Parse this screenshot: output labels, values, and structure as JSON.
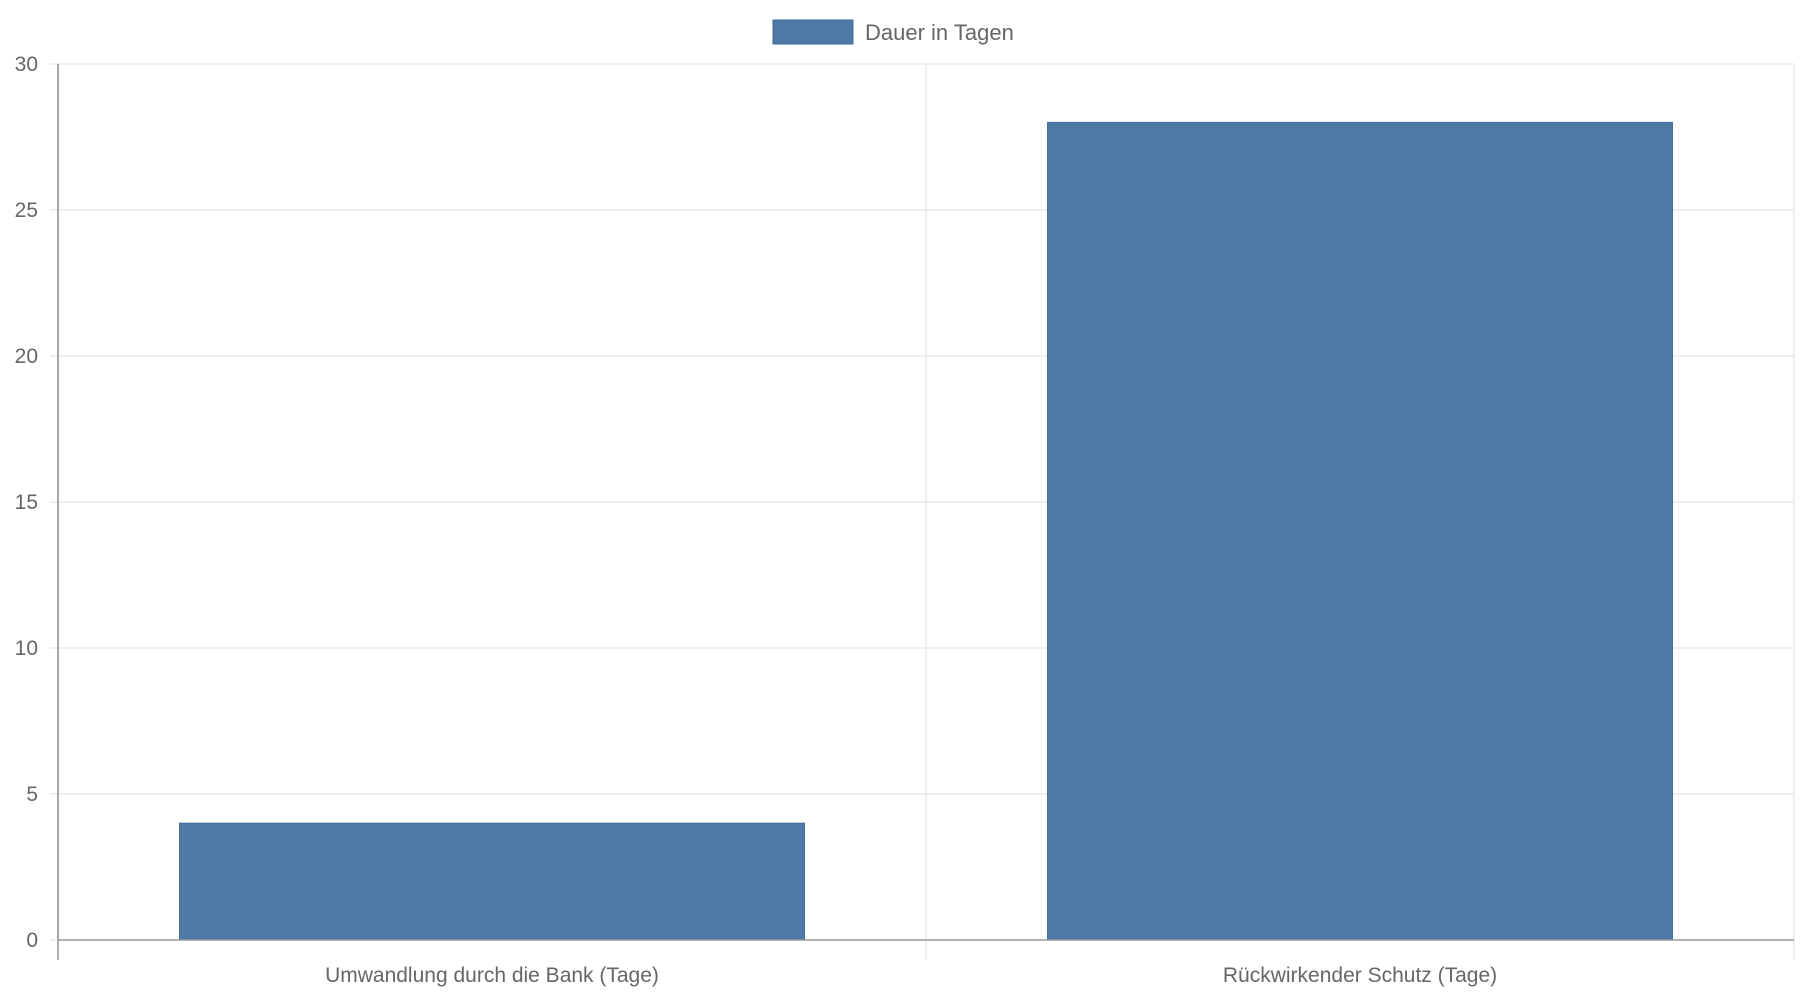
{
  "chart_data": {
    "type": "bar",
    "categories": [
      "Umwandlung durch die Bank (Tage)",
      "Rückwirkender Schutz (Tage)"
    ],
    "series": [
      {
        "name": "Dauer in Tagen",
        "values": [
          4,
          28
        ],
        "color": "#4e79a7"
      }
    ],
    "title": "",
    "xlabel": "",
    "ylabel": "",
    "ylim": [
      0,
      30
    ],
    "yticks": [
      0,
      5,
      10,
      15,
      20,
      25,
      30
    ],
    "grid": true,
    "legend": "top-center"
  }
}
